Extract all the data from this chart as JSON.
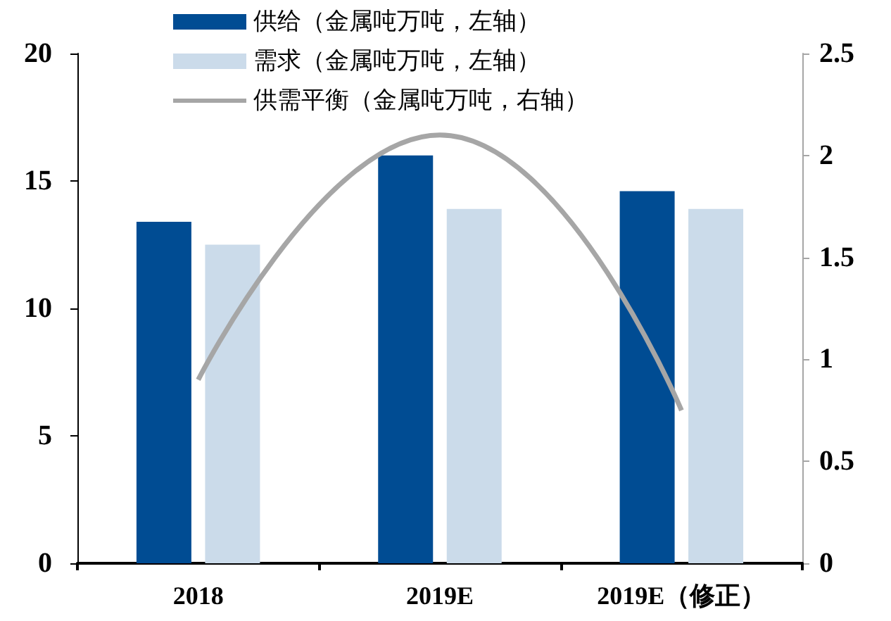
{
  "chart_data": {
    "type": "bar",
    "categories": [
      "2018",
      "2019E",
      "2019E（修正）"
    ],
    "series": [
      {
        "name": "供给（金属吨万吨，左轴）",
        "color": "#004c93",
        "values": [
          13.4,
          16.0,
          14.6
        ]
      },
      {
        "name": "需求（金属吨万吨，左轴）",
        "color": "#cbdbea",
        "values": [
          12.5,
          13.9,
          13.9
        ]
      },
      {
        "name": "供需平衡（金属吨万吨，右轴）",
        "type": "line",
        "axis": "y2",
        "color": "#a6a6a6",
        "values": [
          0.9,
          2.1,
          0.75
        ]
      }
    ],
    "ylim": [
      0,
      20
    ],
    "yticks": [
      0,
      5,
      10,
      15,
      20
    ],
    "y2lim": [
      0,
      2.5
    ],
    "y2ticks": [
      0,
      0.5,
      1,
      1.5,
      2,
      2.5
    ],
    "grid": false,
    "legend": "top",
    "marker": "none"
  }
}
